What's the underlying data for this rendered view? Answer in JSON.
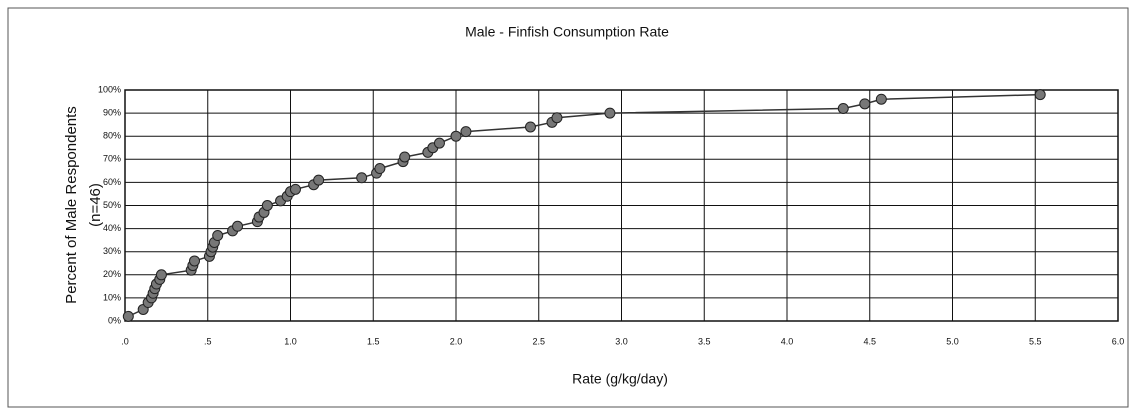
{
  "chart_data": {
    "type": "line",
    "title": "Male - Finfish Consumption Rate",
    "xlabel": "Rate (g/kg/day)",
    "ylabel": [
      "Percent of Male Respondents",
      "(n=46)"
    ],
    "series": [
      {
        "color": "#333333",
        "x": [
          0.02,
          0.11,
          0.14,
          0.16,
          0.17,
          0.18,
          0.19,
          0.21,
          0.22,
          0.4,
          0.41,
          0.42,
          0.51,
          0.52,
          0.53,
          0.54,
          0.56,
          0.65,
          0.68,
          0.8,
          0.81,
          0.84,
          0.86,
          0.94,
          0.98,
          1.0,
          1.03,
          1.14,
          1.17,
          1.43,
          1.52,
          1.54,
          1.68,
          1.69,
          1.83,
          1.86,
          1.9,
          2.0,
          2.06,
          2.45,
          2.58,
          2.61,
          2.93,
          4.34,
          4.47,
          4.57,
          5.53
        ],
        "values": [
          2,
          5,
          8,
          10,
          12,
          14,
          16,
          18,
          20,
          22,
          24,
          26,
          28,
          30,
          32,
          34,
          37,
          39,
          41,
          43,
          45,
          47,
          50,
          52,
          54,
          56,
          57,
          59,
          61,
          62,
          64,
          66,
          69,
          71,
          73,
          75,
          77,
          80,
          82,
          84,
          86,
          88,
          90,
          92,
          94,
          96,
          98
        ]
      }
    ],
    "xlim": [
      0,
      6
    ],
    "ylim": [
      0,
      100
    ],
    "xticks": [
      {
        "value": 0,
        "label": ".0"
      },
      {
        "value": 0.5,
        "label": ".5"
      },
      {
        "value": 1,
        "label": "1.0"
      },
      {
        "value": 1.5,
        "label": "1.5"
      },
      {
        "value": 2,
        "label": "2.0"
      },
      {
        "value": 2.5,
        "label": "2.5"
      },
      {
        "value": 3,
        "label": "3.0"
      },
      {
        "value": 3.5,
        "label": "3.5"
      },
      {
        "value": 4,
        "label": "4.0"
      },
      {
        "value": 4.5,
        "label": "4.5"
      },
      {
        "value": 5,
        "label": "5.0"
      },
      {
        "value": 5.5,
        "label": "5.5"
      },
      {
        "value": 6,
        "label": "6.0"
      }
    ],
    "yticks": [
      {
        "value": 0,
        "label": "0%"
      },
      {
        "value": 10,
        "label": "10%"
      },
      {
        "value": 20,
        "label": "20%"
      },
      {
        "value": 30,
        "label": "30%"
      },
      {
        "value": 40,
        "label": "40%"
      },
      {
        "value": 50,
        "label": "50%"
      },
      {
        "value": 60,
        "label": "60%"
      },
      {
        "value": 70,
        "label": "70%"
      },
      {
        "value": 80,
        "label": "80%"
      },
      {
        "value": 90,
        "label": "90%"
      },
      {
        "value": 100,
        "label": "100%"
      }
    ],
    "grid": true
  }
}
